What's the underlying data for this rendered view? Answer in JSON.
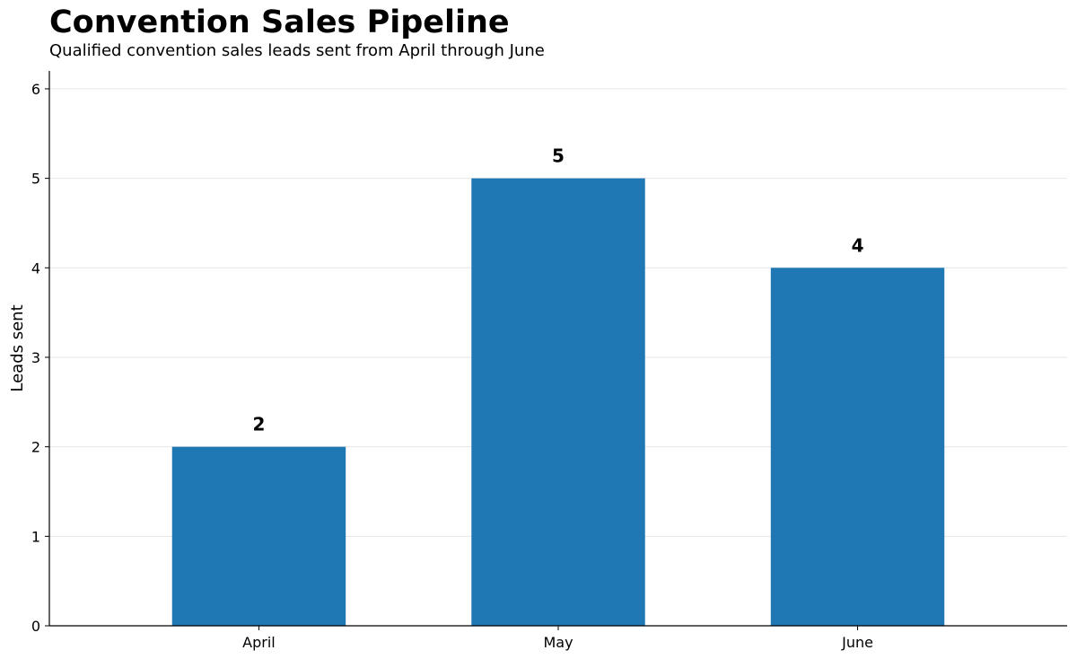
{
  "chart_data": {
    "type": "bar",
    "title": "Convention Sales Pipeline",
    "subtitle": "Qualified convention sales leads sent from April through June",
    "xlabel": "",
    "ylabel": "Leads sent",
    "categories": [
      "April",
      "May",
      "June"
    ],
    "values": [
      2,
      5,
      4
    ],
    "ylim": [
      0,
      6.2
    ],
    "yticks": [
      0,
      1,
      2,
      3,
      4,
      5,
      6
    ],
    "grid": "horizontal",
    "legend": "none",
    "data_labels": true,
    "colors": {
      "bar": "#1f77b4",
      "grid": "#e6e6e6",
      "axis": "#000000",
      "text": "#000000"
    }
  }
}
